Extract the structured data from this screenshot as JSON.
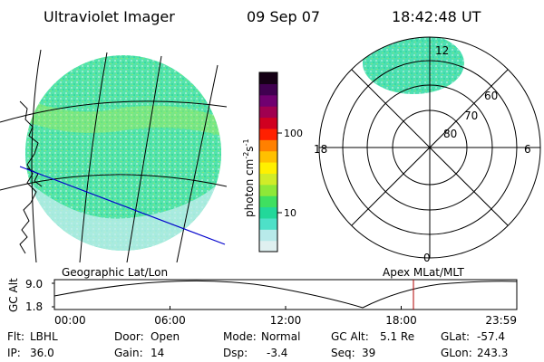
{
  "header": {
    "instrument": "Ultraviolet Imager",
    "date": "09 Sep 07",
    "time": "18:42:48 UT"
  },
  "colorbar": {
    "units_text": "photon cm",
    "units_sup1": "-2",
    "units_s": "s",
    "units_sup2": "-1",
    "tick_100": "100",
    "tick_10": "10",
    "colors": [
      "#dff0f0",
      "#b8eaea",
      "#4ee0c8",
      "#22d89a",
      "#3fe060",
      "#8ee838",
      "#d0ec28",
      "#fff000",
      "#ffc000",
      "#ff8000",
      "#ff2000",
      "#d00020",
      "#a00050",
      "#700070",
      "#400050",
      "#150015"
    ]
  },
  "polar": {
    "mlt_top": "12",
    "mlt_left": "18",
    "mlt_right": "6",
    "mlt_bottom": "0",
    "lat_60": "60",
    "lat_70": "70",
    "lat_80": "80",
    "image_color": "#4ee0b0"
  },
  "geo": {
    "label": "Geographic Lat/Lon",
    "disk_color": "#55e4a8",
    "terminator_color": "#0000cc"
  },
  "apex_label": "Apex MLat/MLT",
  "orbit": {
    "ylabel": "GC Alt",
    "ytick_top": "9.0",
    "ytick_bottom": "1.8",
    "xticks": [
      "00:00",
      "06:00",
      "12:00",
      "18:00",
      "23:59"
    ],
    "marker_color": "#b00000",
    "marker_time": "18:42:48"
  },
  "status": {
    "flt_label": "Flt:",
    "flt_value": "LBHL",
    "ip_label": "IP:",
    "ip_value": "36.0",
    "door_label": "Door:",
    "door_value": "Open",
    "gain_label": "Gain:",
    "gain_value": "14",
    "mode_label": "Mode:",
    "mode_value": "Normal",
    "dsp_label": "Dsp:",
    "dsp_value": "-3.4",
    "gcalt_label": "GC Alt:",
    "gcalt_value": "5.1 Re",
    "seq_label": "Seq:",
    "seq_value": "39",
    "glat_label": "GLat:",
    "glat_value": "-57.4",
    "glon_label": "GLon:",
    "glon_value": "243.3"
  }
}
